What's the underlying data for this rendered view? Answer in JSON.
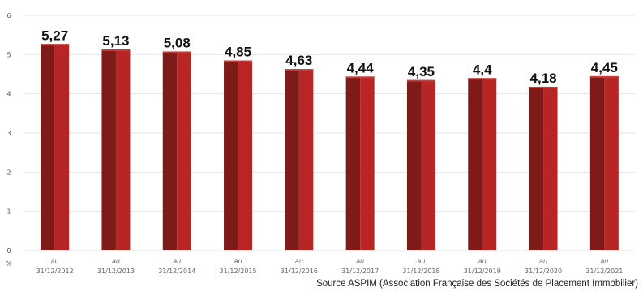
{
  "chart_data": {
    "type": "bar",
    "categories": [
      {
        "line1": "au",
        "line2": "31/12/2012"
      },
      {
        "line1": "au",
        "line2": "31/12/2013"
      },
      {
        "line1": "au",
        "line2": "31/12/2014"
      },
      {
        "line1": "au",
        "line2": "31/12/2015"
      },
      {
        "line1": "au",
        "line2": "31/12/2016"
      },
      {
        "line1": "au",
        "line2": "31/12/2017"
      },
      {
        "line1": "au",
        "line2": "31/12/2018"
      },
      {
        "line1": "au",
        "line2": "31/12/2019"
      },
      {
        "line1": "au",
        "line2": "31/12/2020"
      },
      {
        "line1": "au",
        "line2": "31/12/2021"
      }
    ],
    "values": [
      5.27,
      5.13,
      5.08,
      4.85,
      4.63,
      4.44,
      4.35,
      4.4,
      4.18,
      4.45
    ],
    "data_labels": [
      "5,27",
      "5,13",
      "5,08",
      "4,85",
      "4,63",
      "4,44",
      "4,35",
      "4,4",
      "4,18",
      "4,45"
    ],
    "ylim": [
      0,
      6
    ],
    "yticks": [
      "0",
      "1",
      "2",
      "3",
      "4",
      "5",
      "6"
    ],
    "yunit": "%",
    "grid": true,
    "colors": {
      "bar_dark": "#7e1a18",
      "bar_light": "#b82525",
      "bar_top": "#c73a36",
      "grid": "#e6e6e6"
    }
  },
  "source": "Source ASPIM (Association Française des Sociétés de Placement Immobilier)"
}
